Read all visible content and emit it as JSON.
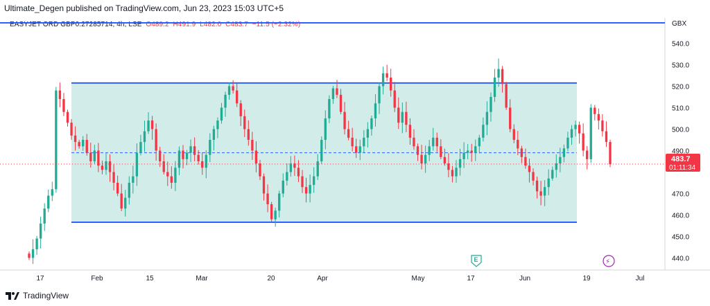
{
  "header": {
    "text": "Ultimate_Degen published on TradingView.com, Jun 23, 2023 15:03 UTC+5"
  },
  "legend": {
    "symbol": "EASYJET ORD GBP0.27285714, 4h, LSE",
    "open": "O489.2",
    "high": "H491.9",
    "low": "L482.0",
    "close": "C483.7",
    "change": "−11.5 (−2.32%)"
  },
  "currency": "GBX",
  "price_tag": {
    "price": "483.7",
    "countdown": "01:11:34"
  },
  "footer": {
    "brand": "TradingView"
  },
  "colors": {
    "up": "#22ab94",
    "down": "#f23645",
    "channel_line": "#2962ff",
    "channel_fill": "#b2dfdb"
  },
  "markers": {
    "earnings": "E",
    "dividend": "⚡"
  },
  "chart_data": {
    "type": "candlestick",
    "title": "EASYJET ORD GBP0.27285714, 4h, LSE",
    "ylim": [
      435,
      546
    ],
    "y_ticks": [
      "540.0",
      "530.0",
      "520.0",
      "510.0",
      "500.0",
      "490.0",
      "470.0",
      "460.0",
      "450.0",
      "440.0"
    ],
    "x_ticks": [
      "17",
      "Feb",
      "15",
      "Mar",
      "20",
      "Apr",
      "May",
      "17",
      "Jun",
      "19",
      "Jul"
    ],
    "last_price": 483.7,
    "channel": {
      "upper": 521.5,
      "lower": 456.6,
      "mid": 489
    },
    "closes": [
      440,
      444,
      449,
      456,
      463,
      469,
      472,
      518,
      514,
      508,
      503,
      497,
      494,
      492,
      495,
      489,
      485,
      490,
      483,
      481,
      485,
      480,
      475,
      470,
      463,
      468,
      475,
      478,
      489,
      494,
      499,
      504,
      500,
      490,
      485,
      480,
      478,
      475,
      482,
      490,
      486,
      489,
      492,
      488,
      485,
      482,
      488,
      495,
      500,
      504,
      510,
      516,
      520,
      518,
      512,
      506,
      500,
      495,
      490,
      484,
      478,
      470,
      465,
      458,
      462,
      470,
      476,
      480,
      484,
      482,
      478,
      473,
      470,
      474,
      478,
      485,
      495,
      505,
      514,
      519,
      516,
      508,
      500,
      496,
      492,
      489,
      492,
      496,
      500,
      505,
      512,
      520,
      526,
      524,
      518,
      510,
      503,
      508,
      502,
      496,
      492,
      488,
      484,
      488,
      492,
      496,
      492,
      487,
      484,
      481,
      478,
      482,
      486,
      489,
      490,
      489,
      492,
      496,
      502,
      508,
      515,
      524,
      528,
      521,
      510,
      500,
      495,
      491,
      487,
      483,
      480,
      476,
      471,
      469,
      473,
      477,
      481,
      484,
      487,
      491,
      496,
      500,
      502,
      498,
      490,
      486,
      510,
      507,
      504,
      499,
      494,
      483.7
    ]
  }
}
